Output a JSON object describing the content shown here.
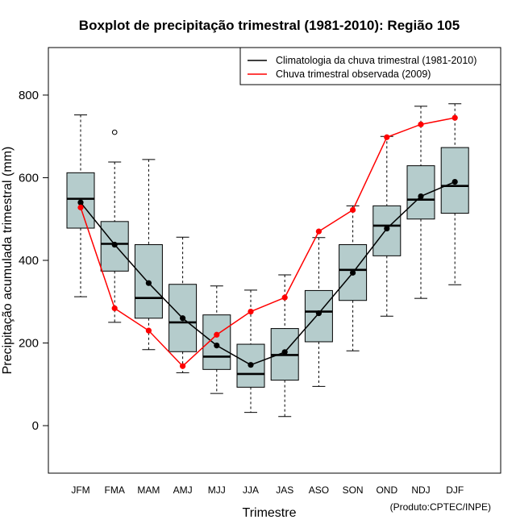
{
  "chart_data": {
    "type": "boxplot",
    "title": "Boxplot de precipitação trimestral (1981-2010): Região 105",
    "xlabel": "Trimestre",
    "ylabel": "Precipitação acumulada trimestral (mm)",
    "ylim": [
      -115,
      915
    ],
    "y_ticks": [
      0,
      200,
      400,
      600,
      800
    ],
    "categories": [
      "JFM",
      "FMA",
      "MAM",
      "AMJ",
      "MJJ",
      "JJA",
      "JAS",
      "ASO",
      "SON",
      "OND",
      "NDJ",
      "DJF"
    ],
    "boxes": [
      {
        "whisker_low": 312,
        "q1": 478,
        "median": 549,
        "q3": 612,
        "whisker_high": 752
      },
      {
        "whisker_low": 250,
        "q1": 374,
        "median": 440,
        "q3": 494,
        "whisker_high": 638
      },
      {
        "whisker_low": 184,
        "q1": 260,
        "median": 309,
        "q3": 438,
        "whisker_high": 644
      },
      {
        "whisker_low": 128,
        "q1": 179,
        "median": 250,
        "q3": 342,
        "whisker_high": 456
      },
      {
        "whisker_low": 78,
        "q1": 136,
        "median": 167,
        "q3": 268,
        "whisker_high": 338
      },
      {
        "whisker_low": 32,
        "q1": 93,
        "median": 125,
        "q3": 197,
        "whisker_high": 328
      },
      {
        "whisker_low": 22,
        "q1": 110,
        "median": 171,
        "q3": 235,
        "whisker_high": 365
      },
      {
        "whisker_low": 95,
        "q1": 203,
        "median": 276,
        "q3": 327,
        "whisker_high": 455
      },
      {
        "whisker_low": 181,
        "q1": 303,
        "median": 377,
        "q3": 438,
        "whisker_high": 532
      },
      {
        "whisker_low": 265,
        "q1": 411,
        "median": 484,
        "q3": 532,
        "whisker_high": 700
      },
      {
        "whisker_low": 308,
        "q1": 500,
        "median": 547,
        "q3": 629,
        "whisker_high": 773
      },
      {
        "whisker_low": 341,
        "q1": 514,
        "median": 580,
        "q3": 673,
        "whisker_high": 779
      }
    ],
    "outliers": [
      {
        "category": "FMA",
        "value": 710
      }
    ],
    "series": [
      {
        "name": "Climatologia da chuva trimestral (1981-2010)",
        "color": "#000000",
        "values": [
          540,
          438,
          345,
          260,
          194,
          147,
          178,
          272,
          370,
          477,
          555,
          590
        ]
      },
      {
        "name": "Chuva trimestral observada (2009)",
        "color": "#ff0000",
        "values": [
          528,
          284,
          230,
          144,
          220,
          276,
          310,
          470,
          522,
          698,
          729,
          745
        ]
      }
    ],
    "legend_position": "top-right",
    "box_fill": "#b5cccc",
    "credit": "(Produto:CPTEC/INPE)"
  }
}
